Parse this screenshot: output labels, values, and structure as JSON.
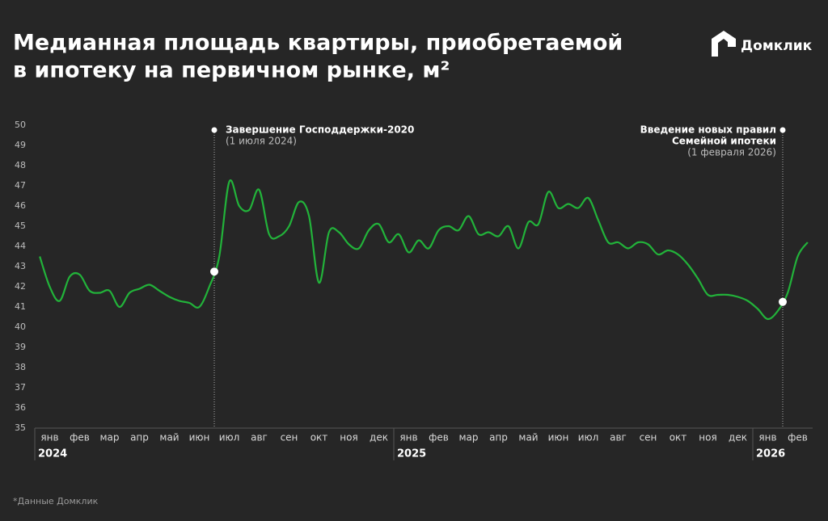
{
  "chart_data": {
    "type": "line",
    "title": [
      "Медианная площадь квартиры, приобретаемой",
      "в ипотеку на первичном рынке, м²"
    ],
    "brand": "Домклик",
    "footnote": "*Данные Домклик",
    "categories": [
      null,
      "янв",
      null,
      null,
      "фев",
      null,
      null,
      "мар",
      null,
      null,
      "апр",
      null,
      null,
      "май",
      null,
      null,
      "июн",
      null,
      null,
      "июл",
      null,
      null,
      "авг",
      null,
      null,
      "сен",
      null,
      null,
      "окт",
      null,
      null,
      "ноя",
      null,
      null,
      "дек",
      null,
      null,
      "янв",
      null,
      null,
      "фев",
      null,
      null,
      "мар",
      null,
      null,
      "апр",
      null,
      null,
      "май",
      null,
      null,
      "июн",
      null,
      null,
      "июл",
      null,
      null,
      "авг",
      null,
      null,
      "сен",
      null,
      null,
      "окт",
      null,
      null,
      "ноя",
      null,
      null,
      "дек",
      null,
      null,
      "янв",
      null,
      null,
      "фев",
      null
    ],
    "years": [
      "2024",
      "2025",
      "2026"
    ],
    "series": [
      {
        "name": "Медианная площадь",
        "color": "#22b33a",
        "values": [
          43.5,
          42.0,
          41.3,
          42.5,
          42.6,
          41.8,
          41.7,
          41.8,
          41.0,
          41.7,
          41.9,
          42.1,
          41.8,
          41.5,
          41.3,
          41.2,
          41.0,
          42.0,
          43.5,
          47.2,
          46.0,
          45.8,
          46.8,
          44.6,
          44.5,
          45.0,
          46.2,
          45.5,
          42.2,
          44.7,
          44.7,
          44.1,
          43.9,
          44.8,
          45.1,
          44.2,
          44.6,
          43.7,
          44.3,
          43.9,
          44.8,
          45.0,
          44.8,
          45.5,
          44.6,
          44.7,
          44.5,
          45.0,
          43.9,
          45.2,
          45.1,
          46.7,
          45.9,
          46.1,
          45.9,
          46.4,
          45.3,
          44.2,
          44.2,
          43.9,
          44.2,
          44.1,
          43.6,
          43.8,
          43.6,
          43.1,
          42.4,
          41.6,
          41.6,
          41.6,
          41.5,
          41.3,
          40.9,
          40.4,
          40.8,
          41.7,
          43.5,
          44.2
        ]
      }
    ],
    "ylim": [
      35,
      50
    ],
    "yticks": [
      35,
      36,
      37,
      38,
      39,
      40,
      41,
      42,
      43,
      44,
      45,
      46,
      47,
      48,
      49,
      50
    ],
    "grid": false,
    "annotations": [
      {
        "title": [
          "Завершение Господдержки-2020"
        ],
        "note": "(1 июля 2024)"
      },
      {
        "title": [
          "Введение новых правил",
          "Семейной ипотеки"
        ],
        "note": "(1 февраля 2026)"
      }
    ]
  }
}
